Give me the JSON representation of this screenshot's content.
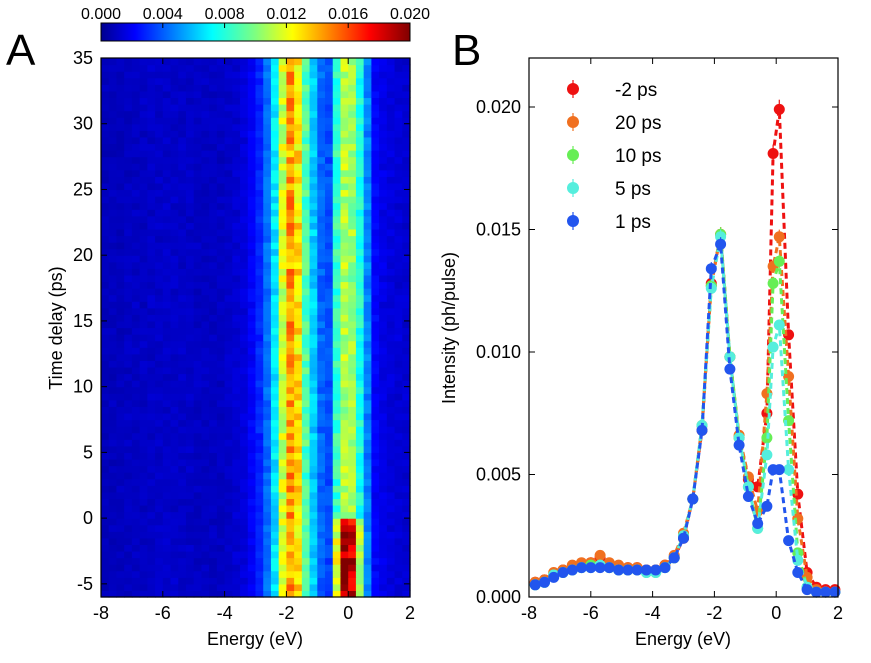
{
  "panels": {
    "a_label": "A",
    "b_label": "B"
  },
  "colorbar": {
    "ticks": [
      "0.000",
      "0.004",
      "0.008",
      "0.012",
      "0.016",
      "0.020"
    ],
    "range": [
      0.0,
      0.02
    ],
    "colormap": "jet"
  },
  "chart_data": [
    {
      "type": "heatmap",
      "panel": "A",
      "title": "",
      "xlabel": "Energy (eV)",
      "ylabel": "Time delay (ps)",
      "xlim": [
        -8,
        2
      ],
      "ylim": [
        -6,
        35
      ],
      "x_ticks": [
        "-8",
        "-6",
        "-4",
        "-2",
        "0",
        "2"
      ],
      "y_ticks": [
        "-5",
        "0",
        "5",
        "10",
        "15",
        "20",
        "25",
        "30",
        "35"
      ],
      "energy_bin_width_eV": 0.25,
      "time_bin_width_ps": 0.5,
      "value_range": [
        0.0,
        0.02
      ],
      "profile_by_energy": {
        "energy_eV": [
          -7.875,
          -7.625,
          -7.375,
          -7.125,
          -6.875,
          -6.625,
          -6.375,
          -6.125,
          -5.875,
          -5.625,
          -5.375,
          -5.125,
          -4.875,
          -4.625,
          -4.375,
          -4.125,
          -3.875,
          -3.625,
          -3.375,
          -3.125,
          -2.875,
          -2.625,
          -2.375,
          -2.125,
          -1.875,
          -1.625,
          -1.375,
          -1.125,
          -0.875,
          -0.625,
          -0.375,
          -0.125,
          0.125,
          0.375,
          0.625,
          0.875,
          1.125,
          1.375,
          1.625,
          1.875
        ],
        "before_time_zero": [
          0.0012,
          0.0012,
          0.0012,
          0.0013,
          0.0013,
          0.0013,
          0.0014,
          0.0015,
          0.0015,
          0.0015,
          0.0014,
          0.0014,
          0.0013,
          0.0013,
          0.0013,
          0.0013,
          0.0014,
          0.0016,
          0.0018,
          0.0024,
          0.0032,
          0.0046,
          0.007,
          0.0115,
          0.0145,
          0.013,
          0.009,
          0.0065,
          0.0045,
          0.0038,
          0.012,
          0.0195,
          0.0185,
          0.011,
          0.005,
          0.0025,
          0.002,
          0.0018,
          0.0017,
          0.0016
        ],
        "after_time_zero": [
          0.0012,
          0.0012,
          0.0012,
          0.0013,
          0.0013,
          0.0013,
          0.0014,
          0.0014,
          0.0014,
          0.0014,
          0.0014,
          0.0014,
          0.0013,
          0.0013,
          0.0013,
          0.0013,
          0.0014,
          0.0016,
          0.0018,
          0.0024,
          0.0032,
          0.0046,
          0.007,
          0.0115,
          0.0145,
          0.013,
          0.009,
          0.0065,
          0.0045,
          0.004,
          0.0085,
          0.011,
          0.0105,
          0.008,
          0.005,
          0.0025,
          0.002,
          0.0018,
          0.0017,
          0.0016
        ]
      }
    },
    {
      "type": "scatter",
      "panel": "B",
      "title": "",
      "xlabel": "Energy (eV)",
      "ylabel": "Intensity (ph/pulse)",
      "xlim": [
        -8,
        2
      ],
      "ylim": [
        0,
        0.022
      ],
      "x_ticks": [
        "-8",
        "-6",
        "-4",
        "-2",
        "0",
        "2"
      ],
      "y_ticks": [
        "0.000",
        "0.005",
        "0.010",
        "0.015",
        "0.020"
      ],
      "legend_position": "top-left",
      "x": [
        -7.8,
        -7.5,
        -7.2,
        -6.9,
        -6.6,
        -6.3,
        -6.0,
        -5.7,
        -5.4,
        -5.1,
        -4.8,
        -4.5,
        -4.2,
        -3.9,
        -3.6,
        -3.3,
        -3.0,
        -2.7,
        -2.4,
        -2.1,
        -1.8,
        -1.5,
        -1.2,
        -0.9,
        -0.6,
        -0.3,
        -0.1,
        0.1,
        0.4,
        0.7,
        1.0,
        1.3,
        1.6,
        1.9
      ],
      "series": [
        {
          "name": "-2 ps",
          "color": "#ee1111",
          "values": [
            0.0006,
            0.0007,
            0.0009,
            0.0011,
            0.0012,
            0.0013,
            0.0014,
            0.0016,
            0.0013,
            0.0012,
            0.0012,
            0.0012,
            0.0011,
            0.0011,
            0.0013,
            0.0016,
            0.0024,
            0.004,
            0.0068,
            0.0128,
            0.0148,
            0.0098,
            0.0065,
            0.0048,
            0.0045,
            0.0075,
            0.0181,
            0.0199,
            0.0107,
            0.0042,
            0.001,
            0.0004,
            0.0003,
            0.0003
          ]
        },
        {
          "name": "20 ps",
          "color": "#f07020",
          "values": [
            0.0006,
            0.0007,
            0.001,
            0.0011,
            0.0013,
            0.0014,
            0.0014,
            0.0017,
            0.0014,
            0.0013,
            0.0012,
            0.0012,
            0.0011,
            0.0011,
            0.0013,
            0.0017,
            0.0026,
            0.004,
            0.007,
            0.0127,
            0.0148,
            0.0098,
            0.0066,
            0.0049,
            0.0035,
            0.0083,
            0.0135,
            0.0147,
            0.009,
            0.0032,
            0.0008,
            0.0003,
            0.0002,
            0.0002
          ]
        },
        {
          "name": "10 ps",
          "color": "#66ee55",
          "values": [
            0.0005,
            0.0006,
            0.0009,
            0.001,
            0.0011,
            0.0012,
            0.0013,
            0.0013,
            0.0012,
            0.0011,
            0.0011,
            0.0011,
            0.001,
            0.001,
            0.0012,
            0.0016,
            0.0025,
            0.004,
            0.007,
            0.0127,
            0.0148,
            0.0098,
            0.0065,
            0.0045,
            0.0028,
            0.0065,
            0.0128,
            0.0137,
            0.0072,
            0.0018,
            0.0004,
            0.0002,
            0.0002,
            0.0002
          ]
        },
        {
          "name": "5 ps",
          "color": "#55eedd",
          "values": [
            0.0005,
            0.0006,
            0.0009,
            0.001,
            0.0011,
            0.0012,
            0.0012,
            0.0013,
            0.0012,
            0.0011,
            0.0011,
            0.0011,
            0.001,
            0.001,
            0.0012,
            0.0016,
            0.0025,
            0.004,
            0.007,
            0.0126,
            0.0147,
            0.0098,
            0.0065,
            0.0045,
            0.0028,
            0.0058,
            0.0102,
            0.0111,
            0.0052,
            0.0015,
            0.0004,
            0.0002,
            0.0002,
            0.0002
          ]
        },
        {
          "name": "1 ps",
          "color": "#2255ee",
          "values": [
            0.0005,
            0.0006,
            0.0008,
            0.001,
            0.0011,
            0.0012,
            0.0012,
            0.0012,
            0.0012,
            0.0011,
            0.0011,
            0.0011,
            0.0011,
            0.0011,
            0.0012,
            0.0016,
            0.0024,
            0.004,
            0.0068,
            0.0134,
            0.0144,
            0.0093,
            0.0062,
            0.0041,
            0.003,
            0.0037,
            0.0052,
            0.0052,
            0.0023,
            0.001,
            0.0003,
            0.0002,
            0.0002,
            0.0002
          ]
        }
      ]
    }
  ]
}
